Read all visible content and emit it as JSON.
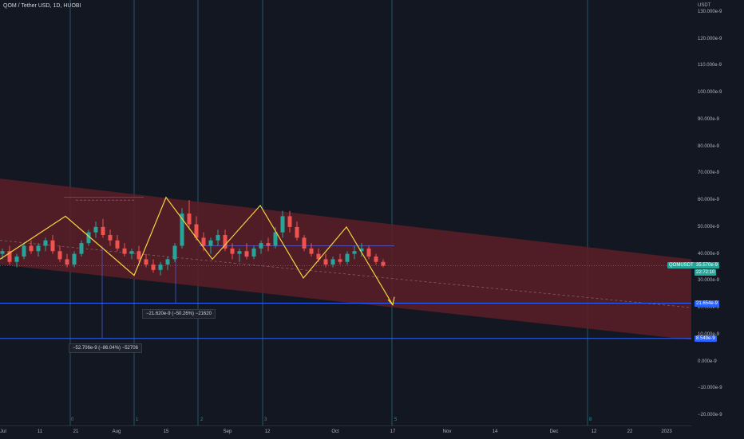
{
  "header": {
    "title": "QOM / Tether USD, 1D, HUOBI"
  },
  "price_scale": {
    "unit": "USDT",
    "ticks": [
      "130.000e-9",
      "120.000e-9",
      "110.000e-9",
      "100.000e-9",
      "90.000e-9",
      "80.000e-9",
      "70.000e-9",
      "60.000e-9",
      "50.000e-9",
      "40.000e-9",
      "30.000e-9",
      "20.000e-9",
      "10.000e-9",
      "0.000e-9",
      "−10.000e-9",
      "−20.000e-9"
    ]
  },
  "time_scale": {
    "ticks": [
      "Jul",
      "11",
      "21",
      "Aug",
      "15",
      "Sep",
      "12",
      "Oct",
      "17",
      "Nov",
      "14",
      "Dec",
      "12",
      "22",
      "2023"
    ]
  },
  "labels": {
    "symbol_tag": "QOMUSDT",
    "last_price": "35.570e-9",
    "countdown": "22:72:10",
    "level_upper": "21.654e-9",
    "level_lower": "8.549e-9"
  },
  "measurements": {
    "first": "−52.706e-9 (−86.04%) −52706",
    "second": "−21.620e-9 (−50.26%) −21620"
  },
  "cycle_labels": [
    "0",
    "1",
    "2",
    "3",
    "5",
    "8"
  ],
  "colors": {
    "background": "#131722",
    "channel_fill": "#5c1f27",
    "bull": "#26a69a",
    "bear": "#ef5350",
    "pattern": "#f5d442",
    "hline": "#2962ff",
    "cycle": "#2f8a9a",
    "last_price_tag": "#26a69a"
  },
  "chart_data": {
    "type": "candlestick",
    "title": "QOM / Tether USD, 1D, HUOBI",
    "y_unit": "USDT",
    "ylim": [
      -2e-08,
      1.3e-07
    ],
    "x_ticks": [
      "Jul",
      "11",
      "21",
      "Aug",
      "15",
      "Sep",
      "12",
      "Oct",
      "17",
      "Nov",
      "14",
      "Dec",
      "12",
      "22",
      "2023"
    ],
    "last_price": 3.557e-08,
    "horizontal_levels": [
      2.1654e-08,
      8.549e-09
    ],
    "pattern_points_e9": [
      38,
      54,
      32,
      61,
      38,
      58,
      31,
      50,
      21
    ],
    "channel_e9": {
      "upper_start": 68,
      "upper_end": 38,
      "lower_start": 36,
      "lower_end": 8
    },
    "candles_e9": [
      [
        40,
        42,
        38,
        41
      ],
      [
        41,
        43,
        36,
        37
      ],
      [
        37,
        40,
        35,
        39
      ],
      [
        39,
        44,
        38,
        43
      ],
      [
        43,
        45,
        40,
        41
      ],
      [
        41,
        44,
        39,
        43
      ],
      [
        43,
        46,
        41,
        45
      ],
      [
        45,
        47,
        40,
        41
      ],
      [
        41,
        43,
        37,
        38
      ],
      [
        38,
        40,
        35,
        36
      ],
      [
        36,
        41,
        35,
        40
      ],
      [
        40,
        45,
        39,
        44
      ],
      [
        44,
        49,
        43,
        48
      ],
      [
        48,
        52,
        46,
        50
      ],
      [
        50,
        53,
        46,
        47
      ],
      [
        47,
        49,
        43,
        45
      ],
      [
        45,
        47,
        41,
        42
      ],
      [
        42,
        44,
        39,
        40
      ],
      [
        40,
        42,
        38,
        41
      ],
      [
        41,
        43,
        37,
        38
      ],
      [
        38,
        40,
        35,
        36
      ],
      [
        36,
        38,
        33,
        34
      ],
      [
        34,
        37,
        32,
        36
      ],
      [
        36,
        39,
        34,
        38
      ],
      [
        38,
        44,
        37,
        43
      ],
      [
        43,
        57,
        42,
        55
      ],
      [
        55,
        60,
        49,
        51
      ],
      [
        51,
        54,
        45,
        46
      ],
      [
        46,
        48,
        41,
        43
      ],
      [
        43,
        46,
        40,
        45
      ],
      [
        45,
        49,
        43,
        47
      ],
      [
        47,
        49,
        41,
        42
      ],
      [
        42,
        44,
        38,
        40
      ],
      [
        40,
        42,
        37,
        41
      ],
      [
        41,
        44,
        38,
        39
      ],
      [
        39,
        43,
        38,
        42
      ],
      [
        42,
        45,
        40,
        44
      ],
      [
        44,
        46,
        41,
        43
      ],
      [
        43,
        50,
        42,
        48
      ],
      [
        48,
        56,
        46,
        54
      ],
      [
        54,
        56,
        48,
        50
      ],
      [
        50,
        52,
        45,
        46
      ],
      [
        46,
        47,
        41,
        42
      ],
      [
        42,
        44,
        39,
        40
      ],
      [
        40,
        42,
        37,
        38
      ],
      [
        38,
        40,
        35,
        36
      ],
      [
        36,
        39,
        35,
        38
      ],
      [
        38,
        40,
        36,
        37
      ],
      [
        37,
        41,
        36,
        40
      ],
      [
        40,
        43,
        38,
        41
      ],
      [
        41,
        44,
        39,
        42
      ],
      [
        42,
        43,
        38,
        39
      ],
      [
        39,
        40,
        36,
        37
      ],
      [
        37,
        38,
        35,
        35.57
      ]
    ]
  }
}
